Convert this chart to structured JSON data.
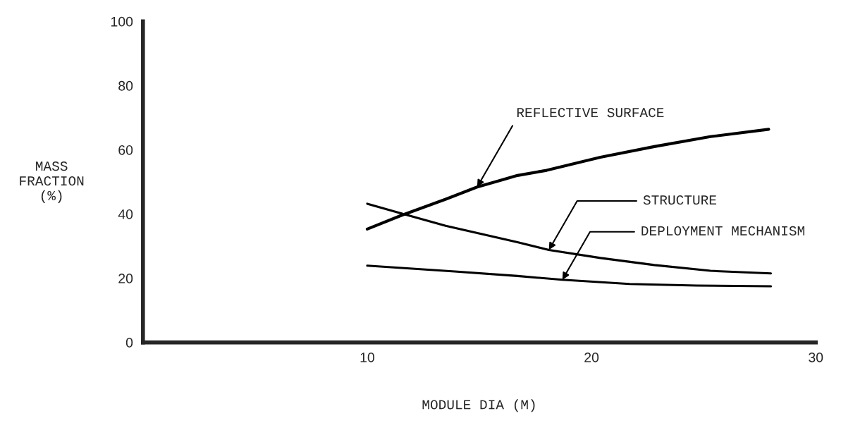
{
  "chart_data": {
    "type": "line",
    "xlabel": "MODULE DIA (M)",
    "ylabel": "MASS\nFRACTION\n(%)",
    "xlim": [
      0,
      30
    ],
    "xticks": [
      10,
      20,
      30
    ],
    "ylim": [
      0,
      100
    ],
    "yticks": [
      0,
      20,
      40,
      60,
      80,
      100
    ],
    "grid": false,
    "legend": false,
    "marker": "none",
    "line_style": "solid",
    "series": [
      {
        "color": "#000000",
        "x": [
          10,
          11.5,
          13.5,
          14.9,
          16.7,
          18.0,
          20.4,
          22.8,
          25.3,
          27.9
        ],
        "values": [
          35.3,
          39.5,
          44.6,
          48.4,
          52,
          53.6,
          57.7,
          61.0,
          64.1,
          66.4
        ]
      },
      {
        "color": "#000000",
        "x": [
          10,
          11.5,
          13.5,
          16.7,
          18.1,
          20.4,
          22.8,
          25.3,
          28.0
        ],
        "values": [
          43.2,
          40.2,
          36.3,
          31.2,
          28.8,
          26.3,
          24.1,
          22.3,
          21.5
        ]
      },
      {
        "color": "#000000",
        "x": [
          10,
          13.9,
          16.7,
          18.7,
          21.7,
          24.7,
          28.0
        ],
        "values": [
          23.9,
          22.1,
          20.7,
          19.5,
          18.2,
          17.7,
          17.5
        ]
      }
    ],
    "annotations": [
      {
        "text": "REFLECTIVE SURFACE",
        "x": 14.9,
        "y": 48.4
      },
      {
        "text": "STRUCTURE",
        "x": 18.1,
        "y": 28.8
      },
      {
        "text": "DEPLOYMENT MECHANISM",
        "x": 18.7,
        "y": 19.5
      }
    ]
  }
}
